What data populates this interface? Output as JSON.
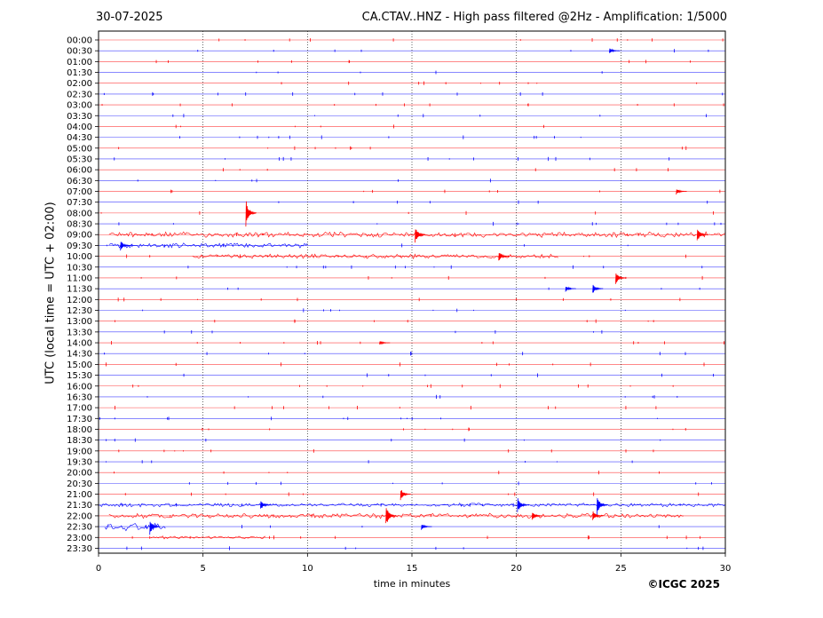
{
  "header": {
    "date": "30-07-2025",
    "title": "CA.CTAV..HNZ - High pass filtered @2Hz - Amplification: 1/5000"
  },
  "footer": {
    "copyright": "©ICGC 2025"
  },
  "colors": {
    "red_trace": "#ff0000",
    "blue_trace": "#0000ff",
    "grid": "#000000"
  },
  "chart_data": {
    "type": "line",
    "title": "CA.CTAV..HNZ - High pass filtered @2Hz - Amplification: 1/5000",
    "xlabel": "time in minutes",
    "ylabel": "UTC (local time = UTC + 02:00)",
    "xlim": [
      0,
      30
    ],
    "x_ticks": [
      0,
      5,
      10,
      15,
      20,
      25,
      30
    ],
    "grid": "vertical dotted lines at 5-minute intervals",
    "rows": [
      "00:00",
      "00:30",
      "01:00",
      "01:30",
      "02:00",
      "02:30",
      "03:00",
      "03:30",
      "04:00",
      "04:30",
      "05:00",
      "05:30",
      "06:00",
      "06:30",
      "07:00",
      "07:30",
      "08:00",
      "08:30",
      "09:00",
      "09:30",
      "10:00",
      "10:30",
      "11:00",
      "11:30",
      "12:00",
      "12:30",
      "13:00",
      "13:30",
      "14:00",
      "14:30",
      "15:00",
      "15:30",
      "16:00",
      "16:30",
      "17:00",
      "17:30",
      "18:00",
      "18:30",
      "19:00",
      "19:30",
      "20:00",
      "20:30",
      "21:00",
      "21:30",
      "22:00",
      "22:30",
      "23:00",
      "23:30"
    ],
    "row_color_pattern": [
      "red",
      "blue"
    ],
    "events": [
      {
        "row": "00:30",
        "minute": 24.5,
        "amplitude": 0.3
      },
      {
        "row": "07:00",
        "minute": 27.7,
        "amplitude": 0.3
      },
      {
        "row": "08:00",
        "minute": 7.1,
        "amplitude": 1.3
      },
      {
        "row": "09:00",
        "minute": 15.2,
        "amplitude": 0.9
      },
      {
        "row": "09:00",
        "minute": 28.7,
        "amplitude": 0.7
      },
      {
        "row": "09:30",
        "minute": 1.1,
        "amplitude": 0.5
      },
      {
        "row": "10:00",
        "minute": 19.2,
        "amplitude": 0.5
      },
      {
        "row": "11:00",
        "minute": 24.8,
        "amplitude": 0.6
      },
      {
        "row": "11:30",
        "minute": 23.7,
        "amplitude": 0.5
      },
      {
        "row": "11:30",
        "minute": 22.4,
        "amplitude": 0.3
      },
      {
        "row": "14:00",
        "minute": 13.5,
        "amplitude": 0.2
      },
      {
        "row": "21:00",
        "minute": 14.5,
        "amplitude": 0.6
      },
      {
        "row": "21:30",
        "minute": 23.9,
        "amplitude": 1.0
      },
      {
        "row": "21:30",
        "minute": 20.1,
        "amplitude": 0.8
      },
      {
        "row": "21:30",
        "minute": 7.8,
        "amplitude": 0.5
      },
      {
        "row": "22:00",
        "minute": 13.8,
        "amplitude": 1.1
      },
      {
        "row": "22:00",
        "minute": 20.8,
        "amplitude": 0.5
      },
      {
        "row": "22:00",
        "minute": 23.7,
        "amplitude": 0.5
      },
      {
        "row": "22:30",
        "minute": 2.5,
        "amplitude": 0.8
      },
      {
        "row": "22:30",
        "minute": 15.5,
        "amplitude": 0.3
      }
    ],
    "noisy_bursts": [
      {
        "row": "09:00",
        "start": 0.5,
        "end": 30,
        "amplitude": 0.22
      },
      {
        "row": "09:30",
        "start": 0.5,
        "end": 10,
        "amplitude": 0.2
      },
      {
        "row": "10:00",
        "start": 4.5,
        "end": 22,
        "amplitude": 0.18
      },
      {
        "row": "21:30",
        "start": 0,
        "end": 30,
        "amplitude": 0.15
      },
      {
        "row": "22:00",
        "start": 0.5,
        "end": 28,
        "amplitude": 0.2
      },
      {
        "row": "22:30",
        "start": 0.3,
        "end": 3.2,
        "amplitude": 0.3
      },
      {
        "row": "23:00",
        "start": 2.5,
        "end": 8,
        "amplitude": 0.12
      }
    ]
  }
}
